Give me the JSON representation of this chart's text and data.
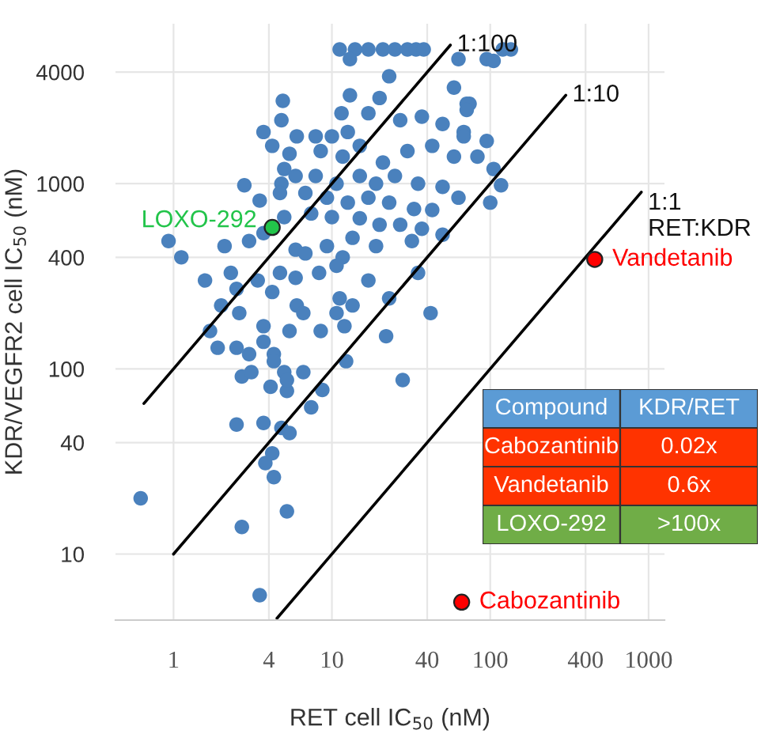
{
  "chart_data": [
    {
      "type": "scatter",
      "xlabel": "RET cell IC$_{50}$ (nM)",
      "ylabel": "KDR/VEGFR2 cell IC$_{50}$ (nM)",
      "log": "xy",
      "grid": true,
      "marker": "circle",
      "xlim": [
        0.43,
        1260
      ],
      "ylim": [
        4.4,
        7300
      ],
      "xticks": [
        1,
        4,
        10,
        40,
        100,
        400,
        1000
      ],
      "yticks": [
        10,
        40,
        100,
        400,
        1000,
        4000
      ],
      "series": [
        {
          "type": "scatter",
          "color": "#4a81bd",
          "x": [
            11.2,
            14,
            17,
            21,
            25,
            30,
            34,
            38,
            13,
            63,
            95,
            23,
            59,
            4.9,
            13,
            20,
            74,
            4.8,
            11.5,
            17,
            3.7,
            6,
            7.9,
            10,
            12.6,
            27,
            37,
            50,
            68,
            4.2,
            5.4,
            8.5,
            11.7,
            15,
            21,
            30,
            43,
            59,
            83,
            5,
            5.9,
            7.9,
            10.7,
            15,
            19,
            25,
            35,
            50,
            63,
            2.8,
            4.8,
            4.7,
            6.8,
            9.3,
            12.6,
            17,
            23,
            33,
            43,
            3.5,
            7.4,
            10,
            15,
            20,
            27,
            37,
            50,
            0.93,
            1.12,
            1.58,
            2.1,
            3.0,
            3.7,
            5,
            5.9,
            6.8,
            9.3,
            11.7,
            13.5,
            19,
            32,
            2.3,
            2.5,
            3.4,
            4.7,
            5.9,
            8.3,
            10.7,
            11.2,
            17,
            23,
            35,
            42,
            2,
            4.2,
            6,
            13.5,
            2.6,
            3.7,
            5.4,
            6.6,
            8.5,
            10.7,
            12,
            1.7,
            1.9,
            2.5,
            3.0,
            3.7,
            4.3,
            4.3,
            5,
            5.2,
            6.6,
            2.7,
            3.1,
            4.1,
            5.2,
            8.7,
            7.4,
            12.3,
            22,
            28,
            2.5,
            3.7,
            4.8,
            5.4,
            4.2,
            3.8,
            4.3,
            5.2,
            2.7,
            0.62,
            3.5,
            120,
            135,
            105,
            71,
            71,
            68,
            95,
            105,
            117,
            100
          ],
          "values": [
            5300,
            5300,
            5300,
            5300,
            5300,
            5300,
            5300,
            5300,
            4700,
            4700,
            4700,
            3800,
            3300,
            2800,
            3000,
            2900,
            2700,
            2200,
            2400,
            2400,
            1900,
            1800,
            1800,
            1800,
            1900,
            2200,
            2300,
            2100,
            1900,
            1600,
            1450,
            1500,
            1400,
            1600,
            1300,
            1500,
            1600,
            1400,
            1400,
            1200,
            1100,
            1100,
            1000,
            1100,
            1000,
            1100,
            1000,
            960,
            840,
            980,
            1000,
            890,
            890,
            840,
            790,
            840,
            790,
            730,
            720,
            810,
            690,
            660,
            650,
            600,
            600,
            570,
            530,
            490,
            400,
            300,
            460,
            490,
            540,
            660,
            440,
            420,
            460,
            400,
            510,
            460,
            490,
            330,
            270,
            300,
            330,
            310,
            330,
            360,
            240,
            300,
            240,
            330,
            200,
            220,
            260,
            220,
            220,
            200,
            170,
            160,
            200,
            160,
            200,
            170,
            160,
            130,
            130,
            120,
            140,
            120,
            110,
            96,
            76,
            96,
            91,
            96,
            80,
            87,
            77,
            62,
            110,
            150,
            87,
            50,
            51,
            48,
            45,
            35,
            31,
            26,
            17,
            14,
            20,
            6,
            5300,
            5300,
            4600,
            2700,
            2500,
            1800,
            1700,
            1200,
            980,
            790
          ]
        },
        {
          "type": "scatter",
          "name": "LOXO-292",
          "color": "#22c44a",
          "x": [
            4.2
          ],
          "values": [
            580
          ]
        },
        {
          "type": "scatter",
          "name": "Vandetanib",
          "color": "#ff0000",
          "x": [
            457
          ],
          "values": [
            390
          ]
        },
        {
          "type": "scatter",
          "name": "Cabozantinib",
          "color": "#ff0000",
          "x": [
            66
          ],
          "values": [
            5.5
          ]
        },
        {
          "type": "line",
          "marker": "none",
          "color": "#000000",
          "x": [
            0.65,
            56
          ],
          "values": [
            65,
            5600
          ]
        },
        {
          "type": "line",
          "marker": "none",
          "color": "#000000",
          "x": [
            1.0,
            300
          ],
          "values": [
            10,
            3000
          ]
        },
        {
          "type": "line",
          "marker": "none",
          "color": "#000000",
          "x": [
            4.5,
            900
          ],
          "values": [
            4.5,
            900
          ]
        }
      ],
      "annotations": [
        {
          "text": "1:100",
          "x": 56,
          "y": 5600
        },
        {
          "text": "1:10",
          "x": 300,
          "y": 3000
        },
        {
          "text": "1:1\nRET:KDR",
          "x": 900,
          "y": 900
        }
      ]
    },
    {
      "type": "other",
      "categories": [
        "Compound",
        "KDR/RET"
      ],
      "y_categories": [
        "Cabozantinib",
        "Vandetanib",
        "LOXO-292"
      ],
      "cell_labels": [
        [
          "0.02x"
        ],
        [
          "0.6x"
        ],
        [
          ">100x"
        ]
      ],
      "colors": [
        "#5b9bd5",
        "#ff3300",
        "#ff3300",
        "#70ad47"
      ]
    }
  ]
}
